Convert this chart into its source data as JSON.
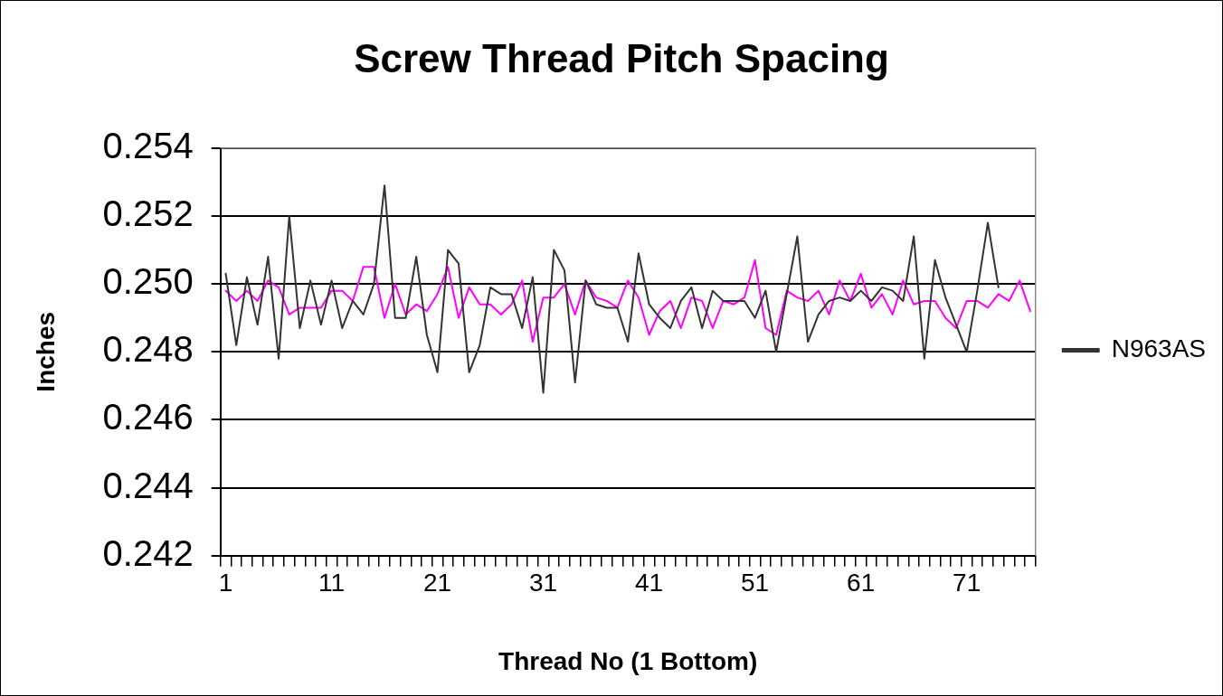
{
  "chart_data": {
    "type": "line",
    "title": "Screw Thread Pitch Spacing",
    "xlabel": "Thread No (1 Bottom)",
    "ylabel": "Inches",
    "categories": [
      "1",
      null,
      null,
      null,
      null,
      null,
      null,
      null,
      null,
      null,
      "11",
      null,
      null,
      null,
      null,
      null,
      null,
      null,
      null,
      null,
      "21",
      null,
      null,
      null,
      null,
      null,
      null,
      null,
      null,
      null,
      "31",
      null,
      null,
      null,
      null,
      null,
      null,
      null,
      null,
      null,
      "41",
      null,
      null,
      null,
      null,
      null,
      null,
      null,
      null,
      null,
      "51",
      null,
      null,
      null,
      null,
      null,
      null,
      null,
      null,
      null,
      "61",
      null,
      null,
      null,
      null,
      null,
      null,
      null,
      null,
      null,
      "71",
      null,
      null,
      null,
      null,
      null,
      null
    ],
    "series": [
      {
        "name": "N963AS",
        "color": "#333333",
        "values": [
          0.2503,
          0.2482,
          0.2502,
          0.2488,
          0.2508,
          0.2478,
          0.252,
          0.2487,
          0.2501,
          0.2488,
          0.2501,
          0.2487,
          0.2495,
          0.2491,
          0.25,
          0.2529,
          0.249,
          0.249,
          0.2508,
          0.2485,
          0.2474,
          0.251,
          0.2506,
          0.2474,
          0.2482,
          0.2499,
          0.2497,
          0.2497,
          0.2487,
          0.2502,
          0.2468,
          0.251,
          0.2504,
          0.2471,
          0.2501,
          0.2494,
          0.2493,
          0.2493,
          0.2483,
          0.2509,
          0.2494,
          0.249,
          0.2487,
          0.2495,
          0.2499,
          0.2487,
          0.2498,
          0.2495,
          0.2495,
          0.2495,
          0.249,
          0.2498,
          0.248,
          0.2497,
          0.2514,
          0.2483,
          0.2491,
          0.2495,
          0.2496,
          0.2495,
          0.2498,
          0.2495,
          0.2499,
          0.2498,
          0.2495,
          0.2514,
          0.2478,
          0.2507,
          0.2496,
          0.2488,
          0.248,
          0.2498,
          0.2518,
          0.2499,
          null,
          null,
          null
        ]
      },
      {
        "color": "#ff00ff",
        "values": [
          0.2498,
          0.2495,
          0.2498,
          0.2495,
          0.2501,
          0.2499,
          0.2491,
          0.2493,
          0.2493,
          0.2493,
          0.2498,
          0.2498,
          0.2495,
          0.2505,
          0.2505,
          0.249,
          0.25,
          0.2491,
          0.2494,
          0.2492,
          0.2497,
          0.2505,
          0.249,
          0.2499,
          0.2494,
          0.2494,
          0.2491,
          0.2494,
          0.2501,
          0.2483,
          0.2496,
          0.2496,
          0.25,
          0.2491,
          0.2501,
          0.2496,
          0.2495,
          0.2493,
          0.2501,
          0.2496,
          0.2485,
          0.2492,
          0.2495,
          0.2487,
          0.2496,
          0.2495,
          0.2487,
          0.2495,
          0.2494,
          0.2496,
          0.2507,
          0.2487,
          0.2485,
          0.2498,
          0.2496,
          0.2495,
          0.2498,
          0.2491,
          0.2501,
          0.2495,
          0.2503,
          0.2493,
          0.2497,
          0.2491,
          0.2501,
          0.2494,
          0.2495,
          0.2495,
          0.249,
          0.2487,
          0.2495,
          0.2495,
          0.2493,
          0.2497,
          0.2495,
          0.2501,
          0.2492
        ]
      }
    ],
    "ylim": [
      0.242,
      0.254
    ],
    "yticks": [
      0.242,
      0.244,
      0.246,
      0.248,
      {
        "value": 0.25,
        "label": "0.250"
      },
      0.252,
      0.254
    ],
    "grid": "y",
    "legend": "right",
    "marker": "none",
    "line_style": "solid"
  }
}
